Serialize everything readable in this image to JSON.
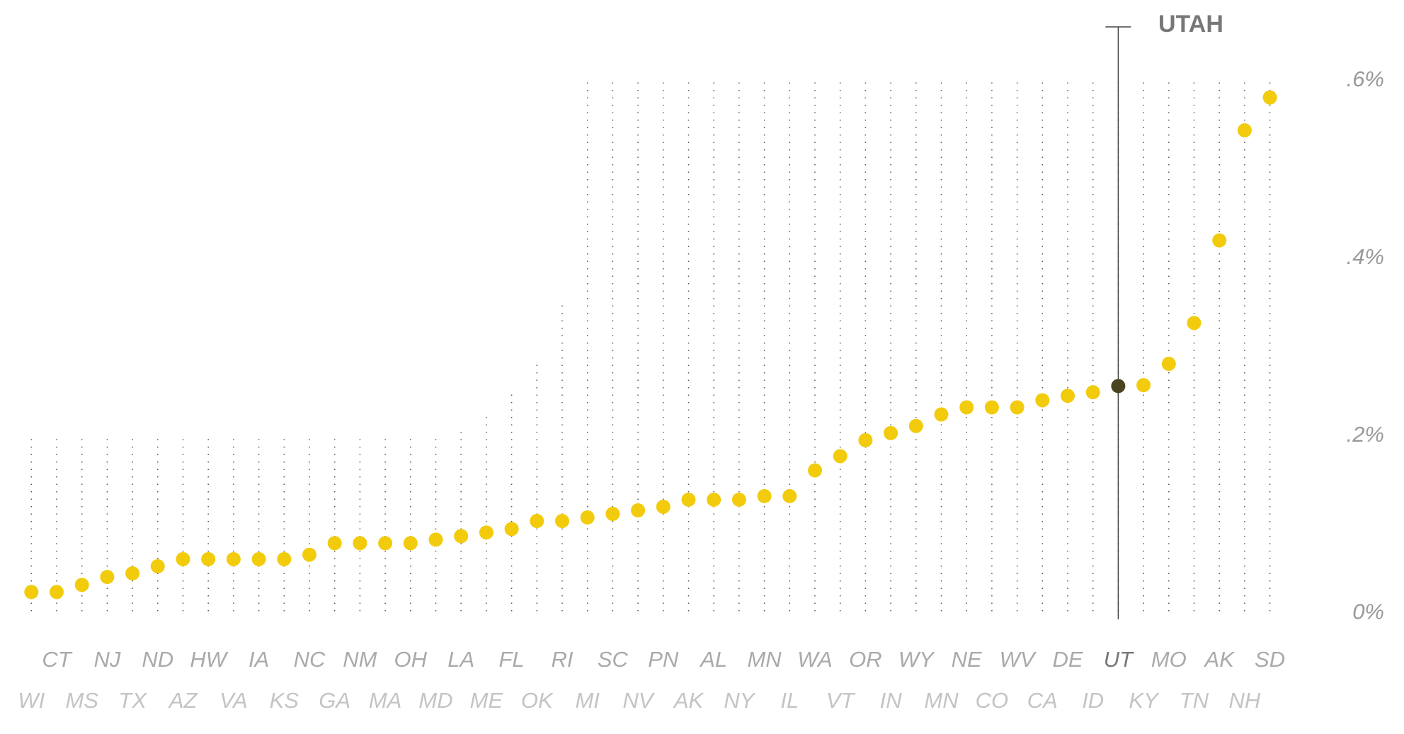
{
  "chart_data": {
    "type": "scatter",
    "categories": [
      "WI",
      "CT",
      "MS",
      "NJ",
      "TX",
      "ND",
      "AZ",
      "HW",
      "VA",
      "IA",
      "KS",
      "NC",
      "GA",
      "NM",
      "MA",
      "OH",
      "MD",
      "LA",
      "ME",
      "FL",
      "OK",
      "RI",
      "MI",
      "SC",
      "NV",
      "PN",
      "AK",
      "AL",
      "NY",
      "MN",
      "IL",
      "WA",
      "VT",
      "OR",
      "IN",
      "WY",
      "MN",
      "NE",
      "CO",
      "WV",
      "CA",
      "DE",
      "ID",
      "UT",
      "KY",
      "MO",
      "TN",
      "AK",
      "NH",
      "SD"
    ],
    "values": [
      0.024,
      0.024,
      0.032,
      0.041,
      0.045,
      0.053,
      0.061,
      0.061,
      0.061,
      0.061,
      0.061,
      0.066,
      0.079,
      0.079,
      0.079,
      0.079,
      0.083,
      0.087,
      0.091,
      0.095,
      0.104,
      0.104,
      0.108,
      0.112,
      0.116,
      0.12,
      0.128,
      0.128,
      0.128,
      0.132,
      0.132,
      0.161,
      0.177,
      0.195,
      0.203,
      0.211,
      0.224,
      0.232,
      0.232,
      0.232,
      0.24,
      0.245,
      0.249,
      0.256,
      0.257,
      0.281,
      0.327,
      0.42,
      0.544,
      0.581
    ],
    "color": "#f2cc0c",
    "highlight": {
      "index": 43,
      "label": "UTAH",
      "color": "#4a4420"
    },
    "ylim": [
      0,
      0.6
    ],
    "yticks": [
      {
        "value": 0,
        "label": "0%"
      },
      {
        "value": 0.2,
        "label": ".2%"
      },
      {
        "value": 0.4,
        "label": ".4%"
      },
      {
        "value": 0.6,
        "label": ".6%"
      }
    ]
  }
}
